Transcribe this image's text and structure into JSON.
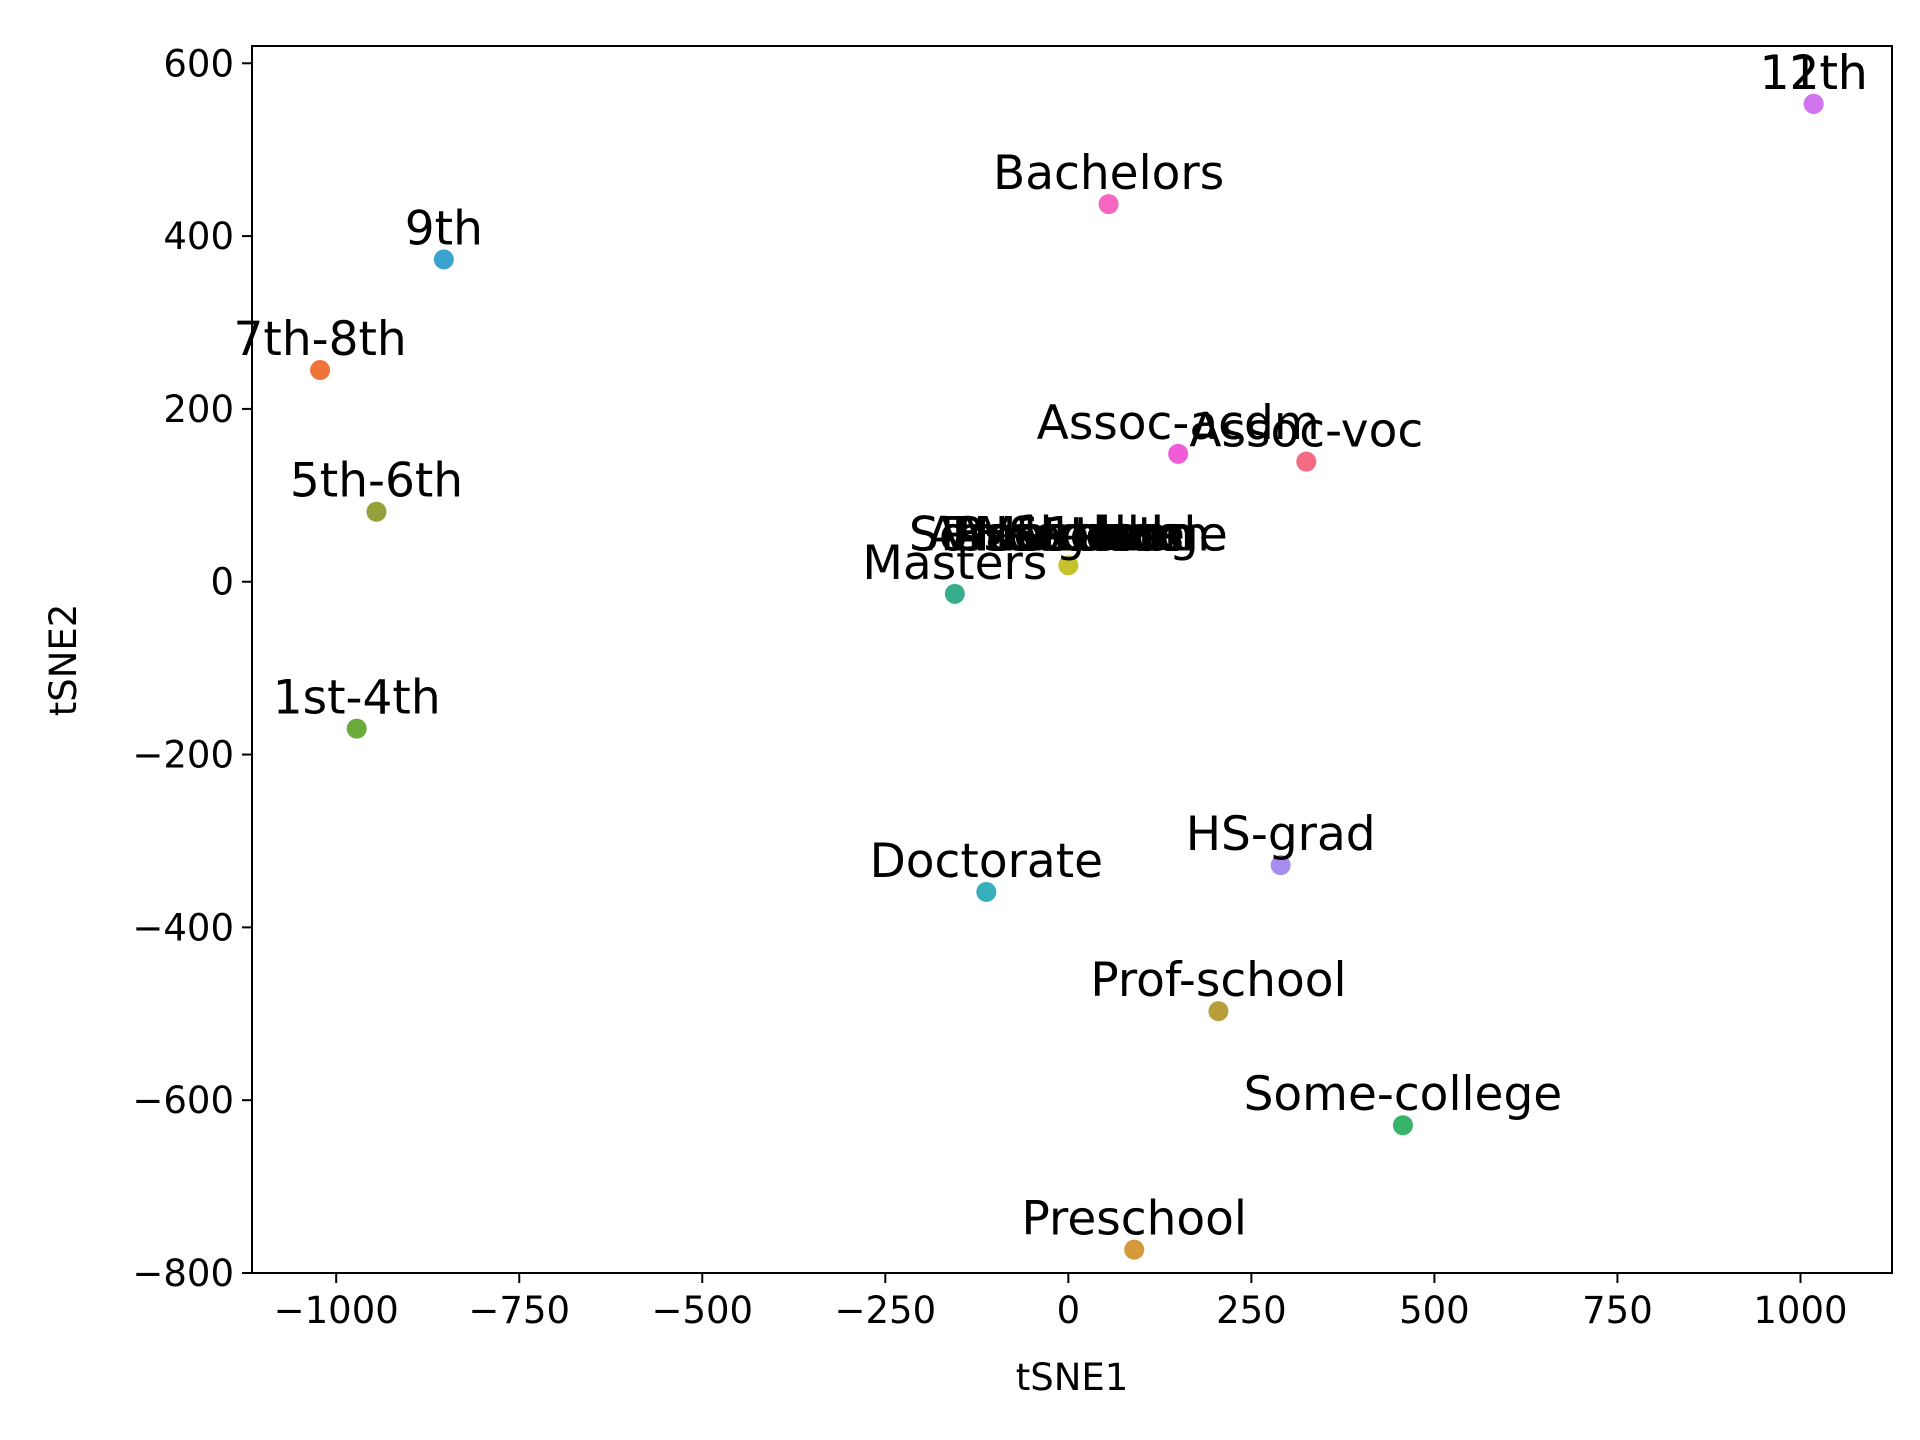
{
  "chart_data": {
    "type": "scatter",
    "xlabel": "tSNE1",
    "ylabel": "tSNE2",
    "xlim": [
      -1115,
      1125
    ],
    "ylim": [
      -800,
      620
    ],
    "xticks": [
      {
        "value": -1000,
        "label": "−1000"
      },
      {
        "value": -750,
        "label": "−750"
      },
      {
        "value": -500,
        "label": "−500"
      },
      {
        "value": -250,
        "label": "−250"
      },
      {
        "value": 0,
        "label": "0"
      },
      {
        "value": 250,
        "label": "250"
      },
      {
        "value": 500,
        "label": "500"
      },
      {
        "value": 750,
        "label": "750"
      },
      {
        "value": 1000,
        "label": "1000"
      }
    ],
    "yticks": [
      {
        "value": -800,
        "label": "−800"
      },
      {
        "value": -600,
        "label": "−600"
      },
      {
        "value": -400,
        "label": "−400"
      },
      {
        "value": -200,
        "label": "−200"
      },
      {
        "value": 0,
        "label": "0"
      },
      {
        "value": 200,
        "label": "200"
      },
      {
        "value": 400,
        "label": "400"
      },
      {
        "value": 600,
        "label": "600"
      }
    ],
    "points": [
      {
        "label": "11th",
        "x": 1018,
        "y": 553,
        "color": "#d174f0"
      },
      {
        "label": "12th",
        "x": 1018,
        "y": 553,
        "color": "#d174f0"
      },
      {
        "label": "Bachelors",
        "x": 55,
        "y": 437,
        "color": "#f466c0"
      },
      {
        "label": "9th",
        "x": -853,
        "y": 373,
        "color": "#3ba3cf"
      },
      {
        "label": "7th-8th",
        "x": -1022,
        "y": 245,
        "color": "#f0733a"
      },
      {
        "label": "Assoc-acdm",
        "x": 150,
        "y": 148,
        "color": "#f05cd8"
      },
      {
        "label": "Assoc-voc",
        "x": 325,
        "y": 139,
        "color": "#f56b84"
      },
      {
        "label": "5th-6th",
        "x": -945,
        "y": 81,
        "color": "#96a03a"
      },
      {
        "label": "Some-college",
        "x": 0,
        "y": 19,
        "color": "#c5c22e"
      },
      {
        "label": "Masters",
        "x": -155,
        "y": -14,
        "color": "#37ad8e"
      },
      {
        "label": "1st-4th",
        "x": -972,
        "y": -170,
        "color": "#6aab3c"
      },
      {
        "label": "HS-grad",
        "x": 290,
        "y": -328,
        "color": "#a58ced"
      },
      {
        "label": "Doctorate",
        "x": -112,
        "y": -359,
        "color": "#37afbd"
      },
      {
        "label": "Prof-school",
        "x": 205,
        "y": -497,
        "color": "#b89e3a"
      },
      {
        "label": "Some-college",
        "x": 457,
        "y": -629,
        "color": "#38b36a"
      },
      {
        "label": "Preschool",
        "x": 90,
        "y": -773,
        "color": "#d49a3a"
      }
    ],
    "overlap_labels": [
      {
        "label": "Some-college",
        "x": 0,
        "y": 19
      },
      {
        "label": "HS-grad",
        "x": 0,
        "y": 19
      },
      {
        "label": "Bachelors",
        "x": 0,
        "y": 19
      },
      {
        "label": "Assoc-voc",
        "x": 0,
        "y": 19
      },
      {
        "label": "Masters",
        "x": 0,
        "y": 19
      },
      {
        "label": "Doctorate",
        "x": 0,
        "y": 19
      },
      {
        "label": "Prof-school",
        "x": 0,
        "y": 19
      },
      {
        "label": "11th",
        "x": 0,
        "y": 19
      },
      {
        "label": "Assoc-acdm",
        "x": 0,
        "y": 19
      }
    ]
  }
}
